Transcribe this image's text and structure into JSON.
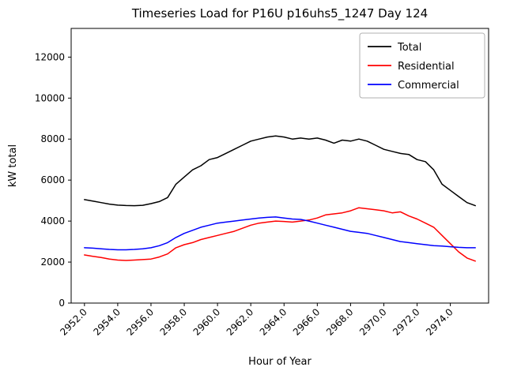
{
  "figure": {
    "title": "Timeseries Load for P16U p16uhs5_1247  Day 124",
    "xlabel": "Hour of Year",
    "ylabel": "kW total"
  },
  "chart_data": {
    "type": "line",
    "title": "Timeseries Load for P16U p16uhs5_1247  Day 124",
    "xlabel": "Hour of Year",
    "ylabel": "kW total",
    "grid": false,
    "legend_position": "upper right",
    "xlim": [
      2951.2,
      2976.3
    ],
    "ylim": [
      0,
      13400
    ],
    "x_ticks": [
      2952,
      2954,
      2956,
      2958,
      2960,
      2962,
      2964,
      2966,
      2968,
      2970,
      2972,
      2974
    ],
    "x_tick_labels": [
      "2952.0",
      "2954.0",
      "2956.0",
      "2958.0",
      "2960.0",
      "2962.0",
      "2964.0",
      "2966.0",
      "2968.0",
      "2970.0",
      "2972.0",
      "2974.0"
    ],
    "y_ticks": [
      0,
      2000,
      4000,
      6000,
      8000,
      10000,
      12000
    ],
    "y_tick_labels": [
      "0",
      "2000",
      "4000",
      "6000",
      "8000",
      "10000",
      "12000"
    ],
    "x": [
      2952.0,
      2952.5,
      2953.0,
      2953.5,
      2954.0,
      2954.5,
      2955.0,
      2955.5,
      2956.0,
      2956.5,
      2957.0,
      2957.5,
      2958.0,
      2958.5,
      2959.0,
      2959.5,
      2960.0,
      2960.5,
      2961.0,
      2961.5,
      2962.0,
      2962.5,
      2963.0,
      2963.5,
      2964.0,
      2964.5,
      2965.0,
      2965.5,
      2966.0,
      2966.5,
      2967.0,
      2967.5,
      2968.0,
      2968.5,
      2969.0,
      2969.5,
      2970.0,
      2970.5,
      2971.0,
      2971.5,
      2972.0,
      2972.5,
      2973.0,
      2973.5,
      2974.0,
      2974.5,
      2975.0,
      2975.5
    ],
    "series": [
      {
        "name": "Total",
        "color": "#000000",
        "values": [
          5050,
          4980,
          4900,
          4830,
          4780,
          4760,
          4750,
          4770,
          4850,
          4950,
          5150,
          5800,
          6150,
          6500,
          6700,
          7000,
          7100,
          7300,
          7500,
          7700,
          7900,
          8000,
          8100,
          8150,
          8100,
          8000,
          8050,
          8000,
          8050,
          7950,
          7800,
          7950,
          7900,
          8000,
          7900,
          7700,
          7500,
          7400,
          7300,
          7250,
          7000,
          6900,
          6500,
          5800,
          5500,
          5200,
          4900,
          4750
        ]
      },
      {
        "name": "Residential",
        "color": "#ff0000",
        "values": [
          2350,
          2280,
          2220,
          2150,
          2100,
          2080,
          2100,
          2120,
          2150,
          2250,
          2400,
          2700,
          2850,
          2950,
          3100,
          3200,
          3300,
          3400,
          3500,
          3650,
          3800,
          3900,
          3950,
          4000,
          3980,
          3950,
          4000,
          4050,
          4150,
          4300,
          4350,
          4400,
          4500,
          4650,
          4600,
          4550,
          4500,
          4400,
          4450,
          4250,
          4100,
          3900,
          3700,
          3300,
          2900,
          2500,
          2200,
          2050
        ]
      },
      {
        "name": "Commercial",
        "color": "#0000ff",
        "values": [
          2700,
          2680,
          2650,
          2620,
          2600,
          2600,
          2620,
          2650,
          2700,
          2800,
          2950,
          3200,
          3400,
          3550,
          3700,
          3800,
          3900,
          3950,
          4000,
          4050,
          4100,
          4150,
          4180,
          4200,
          4150,
          4100,
          4080,
          4000,
          3900,
          3800,
          3700,
          3600,
          3500,
          3450,
          3400,
          3300,
          3200,
          3100,
          3000,
          2950,
          2900,
          2850,
          2800,
          2780,
          2750,
          2720,
          2700,
          2700
        ]
      }
    ]
  }
}
